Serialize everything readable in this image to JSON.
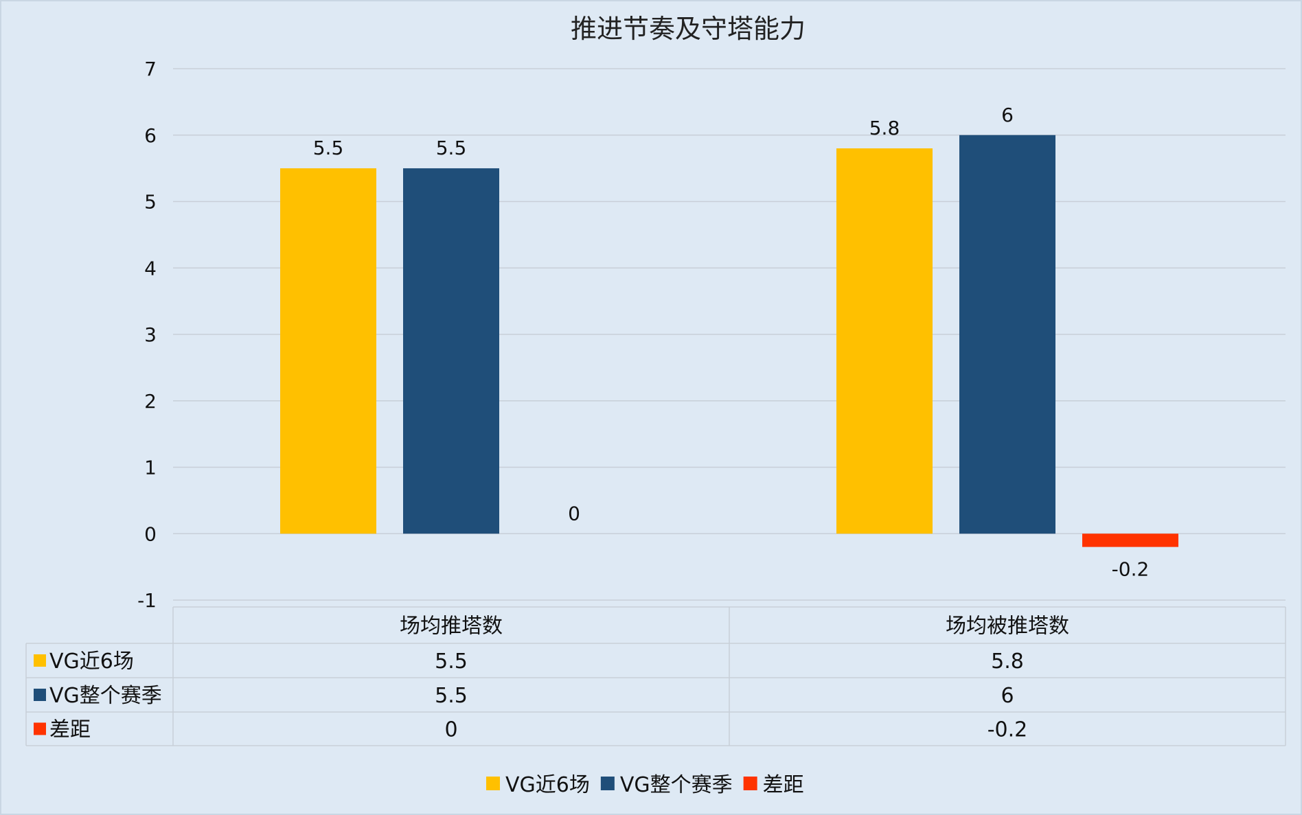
{
  "chart_data": {
    "type": "bar",
    "title": "推进节奏及守塔能力",
    "categories": [
      "场均推塔数",
      "场均被推塔数"
    ],
    "series": [
      {
        "name": "VG近6场",
        "values": [
          5.5,
          5.8
        ],
        "color": "#FFC000"
      },
      {
        "name": "VG整个赛季",
        "values": [
          5.5,
          6
        ],
        "color": "#1F4E79"
      },
      {
        "name": "差距",
        "values": [
          0,
          -0.2
        ],
        "color": "#FF3300"
      }
    ],
    "ylim": [
      -1,
      7
    ],
    "yticks": [
      7,
      6,
      5,
      4,
      3,
      2,
      1,
      0,
      -1
    ],
    "grid": true,
    "data_table": true,
    "legend": "bottom"
  }
}
